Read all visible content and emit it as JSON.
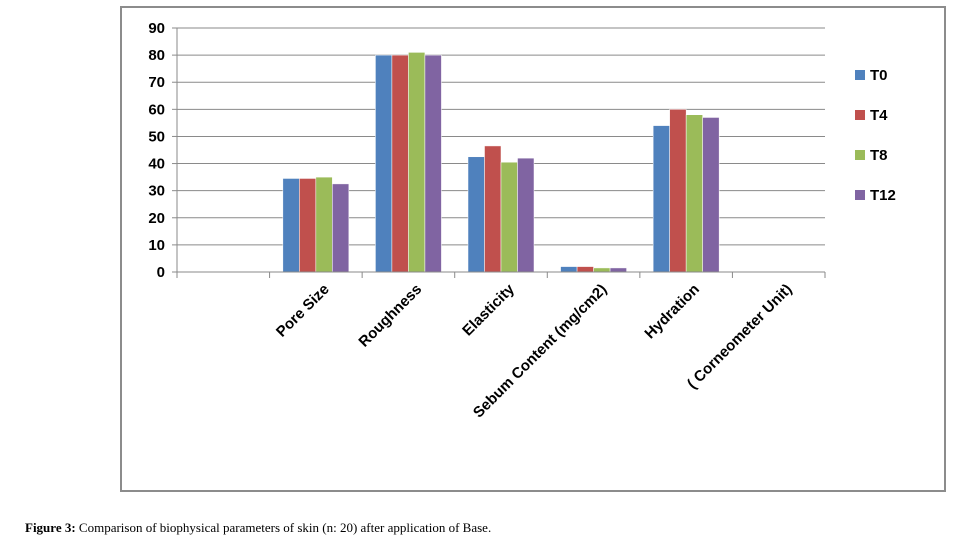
{
  "caption": {
    "label": "Figure 3:",
    "text": " Comparison of biophysical parameters of skin (n: 20) after application of Base."
  },
  "chart_data": {
    "type": "bar",
    "title": "",
    "xlabel": "",
    "ylabel": "",
    "categories": [
      "",
      "Pore Size",
      "Roughness",
      "Elasticity",
      "Sebum Content (mg/cm2)",
      "Hydration",
      "( Corneometer Unit)"
    ],
    "series": [
      {
        "name": "T0",
        "color": "#4f81bd",
        "values": [
          null,
          34.5,
          80,
          42.5,
          2,
          54,
          null
        ]
      },
      {
        "name": "T4",
        "color": "#c0504d",
        "values": [
          null,
          34.5,
          80,
          46.5,
          2,
          60,
          null
        ]
      },
      {
        "name": "T8",
        "color": "#9bbb59",
        "values": [
          null,
          35,
          81,
          40.5,
          1.5,
          58,
          null
        ]
      },
      {
        "name": "T12",
        "color": "#8064a2",
        "values": [
          null,
          32.5,
          80,
          42,
          1.5,
          57,
          null
        ]
      }
    ],
    "ylim": [
      0,
      90
    ],
    "yticks": [
      0,
      10,
      20,
      30,
      40,
      50,
      60,
      70,
      80,
      90
    ],
    "grid": true,
    "legend": "right"
  }
}
